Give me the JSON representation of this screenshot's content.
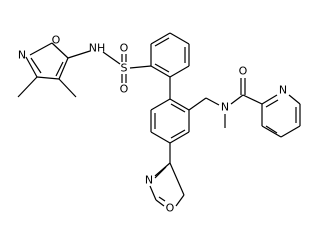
{
  "atoms": [
    {
      "label": "N"
    },
    {
      "label": "O"
    },
    {
      "label": "NH"
    },
    {
      "label": "S"
    },
    {
      "label": "O"
    },
    {
      "label": "O"
    },
    {
      "label": "N"
    },
    {
      "label": "O"
    },
    {
      "label": "N"
    },
    {
      "label": "N"
    },
    {
      "label": "O"
    }
  ]
}
